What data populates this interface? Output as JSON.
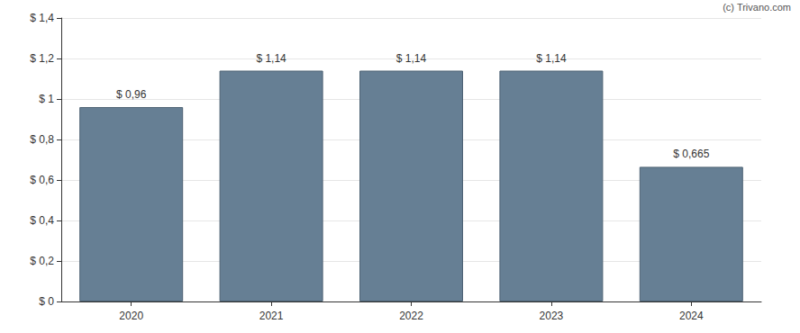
{
  "chart_data": {
    "type": "bar",
    "annotation": "(c) Trivano.com",
    "categories": [
      "2020",
      "2021",
      "2022",
      "2023",
      "2024"
    ],
    "values": [
      0.96,
      1.14,
      1.14,
      1.14,
      0.665
    ],
    "value_labels": [
      "$ 0,96",
      "$ 1,14",
      "$ 1,14",
      "$ 1,14",
      "$ 0,665"
    ],
    "color": "#667f94",
    "ylim": [
      0,
      1.4
    ],
    "yticks": [
      {
        "value": 0,
        "label": "$ 0"
      },
      {
        "value": 0.2,
        "label": "$ 0,2"
      },
      {
        "value": 0.4,
        "label": "$ 0,4"
      },
      {
        "value": 0.6,
        "label": "$ 0,6"
      },
      {
        "value": 0.8,
        "label": "$ 0,8"
      },
      {
        "value": 1,
        "label": "$ 1"
      },
      {
        "value": 1.2,
        "label": "$ 1,2"
      },
      {
        "value": 1.4,
        "label": "$ 1,4"
      }
    ],
    "grid": true,
    "data_labels": true
  }
}
